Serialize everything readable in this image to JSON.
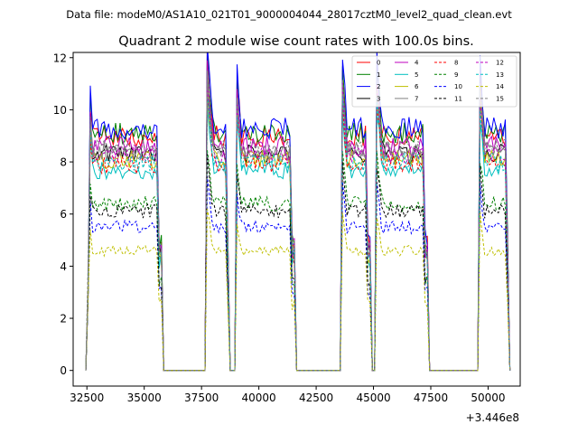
{
  "suptitle": "Data file: modeM0/AS1A10_021T01_9000004044_28017cztM0_level2_quad_clean.evt",
  "chart_data": {
    "type": "line",
    "title": "Quadrant 2 module wise count rates with 100.0s bins.",
    "xlabel": "",
    "ylabel": "",
    "x_offset_label": "+3.446e8",
    "xlim": [
      31900,
      51400
    ],
    "ylim": [
      -0.6,
      12.2
    ],
    "xticks": [
      32500,
      35000,
      37500,
      40000,
      42500,
      45000,
      47500,
      50000
    ],
    "xtick_labels": [
      "32500",
      "35000",
      "37500",
      "40000",
      "42500",
      "45000",
      "47500",
      "50000"
    ],
    "yticks": [
      0,
      2,
      4,
      6,
      8,
      10,
      12
    ],
    "ytick_labels": [
      "0",
      "2",
      "4",
      "6",
      "8",
      "10",
      "12"
    ],
    "grid": false,
    "legend_position": "top-right",
    "gti_segments": [
      {
        "on": 32500,
        "off": 35750
      },
      {
        "on": 37750,
        "off": 38680
      },
      {
        "on": 38980,
        "off": 41550
      },
      {
        "on": 43600,
        "off": 44860
      },
      {
        "on": 45120,
        "off": 47350
      },
      {
        "on": 49600,
        "off": 50900
      }
    ],
    "series": [
      {
        "name": "0",
        "color": "#ff0000",
        "style": "solid",
        "level": 9.0
      },
      {
        "name": "1",
        "color": "#008000",
        "style": "solid",
        "level": 9.1
      },
      {
        "name": "2",
        "color": "#0000ff",
        "style": "solid",
        "level": 9.3
      },
      {
        "name": "3",
        "color": "#000000",
        "style": "solid",
        "level": 8.3
      },
      {
        "name": "4",
        "color": "#bf00bf",
        "style": "solid",
        "level": 8.6
      },
      {
        "name": "5",
        "color": "#00bfbf",
        "style": "solid",
        "level": 7.7
      },
      {
        "name": "6",
        "color": "#bfbf00",
        "style": "solid",
        "level": 8.1
      },
      {
        "name": "7",
        "color": "#808080",
        "style": "solid",
        "level": 8.4
      },
      {
        "name": "8",
        "color": "#ff0000",
        "style": "dashed",
        "level": 7.9
      },
      {
        "name": "9",
        "color": "#008000",
        "style": "dashed",
        "level": 6.4
      },
      {
        "name": "10",
        "color": "#0000ff",
        "style": "dashed",
        "level": 5.5
      },
      {
        "name": "11",
        "color": "#000000",
        "style": "dashed",
        "level": 6.1
      },
      {
        "name": "12",
        "color": "#bf00bf",
        "style": "dashed",
        "level": 8.3
      },
      {
        "name": "13",
        "color": "#00bfbf",
        "style": "dashed",
        "level": 8.0
      },
      {
        "name": "14",
        "color": "#bfbf00",
        "style": "dashed",
        "level": 4.6
      },
      {
        "name": "15",
        "color": "#808080",
        "style": "dashed",
        "level": 8.5
      }
    ]
  }
}
